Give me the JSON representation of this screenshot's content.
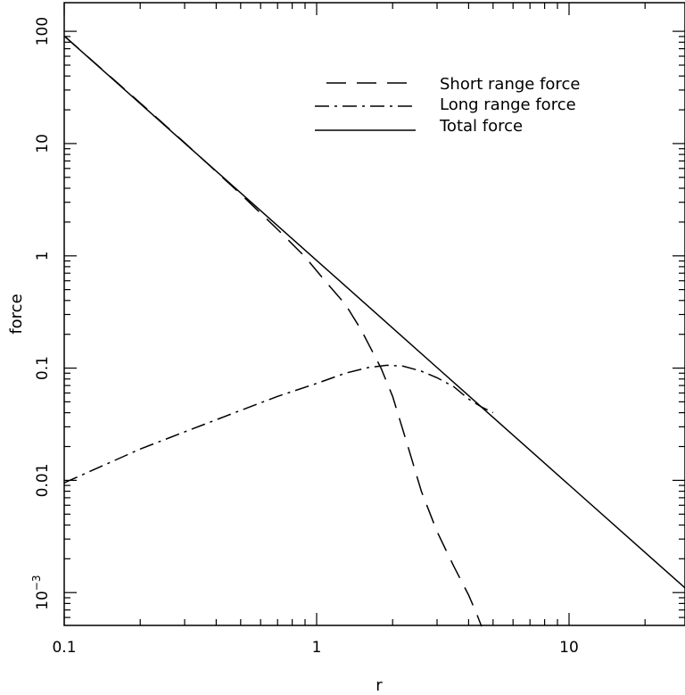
{
  "chart_data": {
    "type": "line",
    "title": "",
    "xlabel": "r",
    "ylabel": "force",
    "xscale": "log",
    "yscale": "log",
    "xlim": [
      0.1,
      28.8
    ],
    "ylim": [
      0.00051,
      180
    ],
    "x_ticks": [
      {
        "value": 0.1,
        "label": "0.1"
      },
      {
        "value": 1,
        "label": "1"
      },
      {
        "value": 10,
        "label": "10"
      }
    ],
    "y_ticks": [
      {
        "value": 0.001,
        "label": "10",
        "sup": "−3"
      },
      {
        "value": 0.01,
        "label": "0.01"
      },
      {
        "value": 0.1,
        "label": "0.1"
      },
      {
        "value": 1,
        "label": "1"
      },
      {
        "value": 10,
        "label": "10"
      },
      {
        "value": 100,
        "label": "100"
      }
    ],
    "legend": {
      "position": "top-right",
      "entries": [
        {
          "label": "Short range force",
          "series": "short"
        },
        {
          "label": "Long range force",
          "series": "long"
        },
        {
          "label": "Total force",
          "series": "total"
        }
      ]
    },
    "series": [
      {
        "key": "short",
        "name": "Short range force",
        "style": "dashed",
        "points": [
          [
            0.1,
            91
          ],
          [
            0.2,
            23
          ],
          [
            0.3,
            10.2
          ],
          [
            0.5,
            3.55
          ],
          [
            0.7,
            1.72
          ],
          [
            0.9,
            0.98
          ],
          [
            1.1,
            0.57
          ],
          [
            1.3,
            0.37
          ],
          [
            1.5,
            0.22
          ],
          [
            1.8,
            0.1
          ],
          [
            2,
            0.056
          ],
          [
            2.3,
            0.02
          ],
          [
            2.6,
            0.008
          ],
          [
            3,
            0.0035
          ],
          [
            3.5,
            0.0017
          ],
          [
            4,
            0.00095
          ],
          [
            4.3,
            0.00065
          ],
          [
            4.5,
            0.0005
          ]
        ]
      },
      {
        "key": "long",
        "name": "Long range force",
        "style": "dash-dot",
        "points": [
          [
            0.1,
            0.0095
          ],
          [
            0.2,
            0.019
          ],
          [
            0.3,
            0.027
          ],
          [
            0.5,
            0.042
          ],
          [
            0.7,
            0.056
          ],
          [
            1,
            0.073
          ],
          [
            1.3,
            0.09
          ],
          [
            1.6,
            0.101
          ],
          [
            1.9,
            0.106
          ],
          [
            2.2,
            0.104
          ],
          [
            2.6,
            0.094
          ],
          [
            3,
            0.082
          ],
          [
            3.5,
            0.068
          ],
          [
            4,
            0.053
          ],
          [
            4.5,
            0.045
          ],
          [
            5,
            0.04
          ]
        ]
      },
      {
        "key": "total",
        "name": "Total force",
        "style": "solid",
        "points": [
          [
            0.1,
            91
          ],
          [
            0.3,
            10.1
          ],
          [
            1,
            0.91
          ],
          [
            3,
            0.101
          ],
          [
            5,
            0.0364
          ],
          [
            10,
            0.0091
          ],
          [
            20,
            0.00228
          ],
          [
            28.8,
            0.0011
          ]
        ]
      }
    ]
  }
}
